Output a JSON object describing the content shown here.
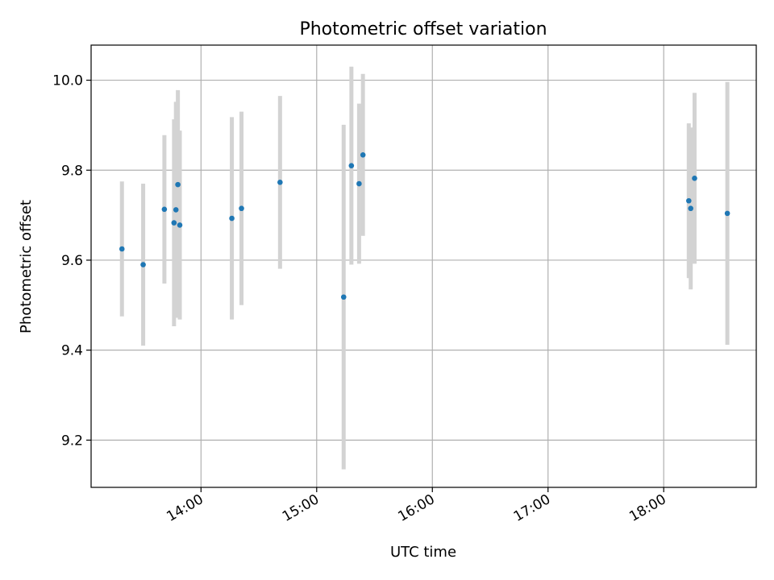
{
  "chart_data": {
    "type": "scatter",
    "title": "Photometric offset variation",
    "xlabel": "UTC time",
    "ylabel": "Photometric offset",
    "x_axis": {
      "kind": "time",
      "range": [
        "13:03",
        "18:48"
      ],
      "ticks": [
        "14:00",
        "15:00",
        "16:00",
        "17:00",
        "18:00"
      ]
    },
    "y_axis": {
      "range": [
        9.095,
        10.078
      ],
      "ticks": [
        9.2,
        9.4,
        9.6,
        9.8,
        10.0
      ],
      "tick_labels": [
        "9.2",
        "9.4",
        "9.6",
        "9.8",
        "10.0"
      ]
    },
    "grid": true,
    "legend": "none",
    "colors": {
      "point": "#1f77b4",
      "errorbar": "#d3d3d3",
      "grid": "#b0b0b0"
    },
    "points": [
      {
        "x": "13:19",
        "y": 9.625,
        "err": 0.15
      },
      {
        "x": "13:30",
        "y": 9.59,
        "err": 0.18
      },
      {
        "x": "13:41",
        "y": 9.713,
        "err": 0.165
      },
      {
        "x": "13:46",
        "y": 9.683,
        "err": 0.23
      },
      {
        "x": "13:47",
        "y": 9.712,
        "err": 0.24
      },
      {
        "x": "13:48",
        "y": 9.768,
        "err": 0.21
      },
      {
        "x": "13:49",
        "y": 9.678,
        "err": 0.21
      },
      {
        "x": "14:16",
        "y": 9.693,
        "err": 0.225
      },
      {
        "x": "14:21",
        "y": 9.715,
        "err": 0.215
      },
      {
        "x": "14:41",
        "y": 9.773,
        "err": 0.192
      },
      {
        "x": "15:14",
        "y": 9.518,
        "err": 0.383
      },
      {
        "x": "15:18",
        "y": 9.81,
        "err": 0.22
      },
      {
        "x": "15:22",
        "y": 9.77,
        "err": 0.178
      },
      {
        "x": "15:24",
        "y": 9.834,
        "err": 0.18
      },
      {
        "x": "18:13",
        "y": 9.732,
        "err": 0.172
      },
      {
        "x": "18:14",
        "y": 9.715,
        "err": 0.18
      },
      {
        "x": "18:16",
        "y": 9.782,
        "err": 0.19
      },
      {
        "x": "18:33",
        "y": 9.704,
        "err": 0.292
      }
    ]
  }
}
